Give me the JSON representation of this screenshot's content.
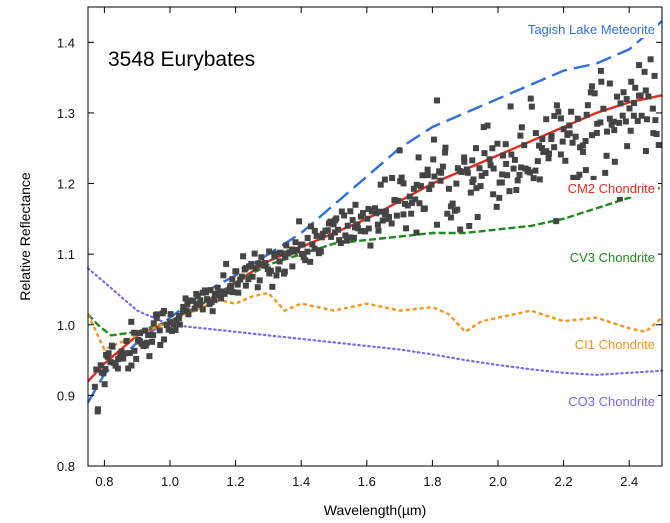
{
  "chart_data": {
    "type": "scatter",
    "title": "3548 Eurybates",
    "xlabel": "Wavelength(µm)",
    "ylabel": "Relative Reflectance",
    "xlim": [
      0.75,
      2.5
    ],
    "ylim": [
      0.8,
      1.45
    ],
    "xticks": [
      0.8,
      1.0,
      1.2,
      1.4,
      1.6,
      1.8,
      2.0,
      2.2,
      2.4
    ],
    "yticks": [
      0.8,
      0.9,
      1.0,
      1.1,
      1.2,
      1.3,
      1.4
    ],
    "xtick_labels": [
      "0.8",
      "1.0",
      "1.2",
      "1.4",
      "1.6",
      "1.8",
      "2.0",
      "2.2",
      "2.4"
    ],
    "ytick_labels": [
      "0.8",
      "0.9",
      "1.0",
      "1.1",
      "1.2",
      "1.3",
      "1.4"
    ],
    "grid": false,
    "legend": "inline labels at right side of each curve",
    "observed": {
      "marker": "square",
      "color": "#444444",
      "trend_x": [
        0.75,
        0.85,
        0.95,
        1.05,
        1.2,
        1.4,
        1.6,
        1.8,
        2.0,
        2.2,
        2.4,
        2.5
      ],
      "trend_y": [
        0.92,
        0.96,
        0.99,
        1.02,
        1.06,
        1.11,
        1.15,
        1.2,
        1.23,
        1.27,
        1.3,
        1.32
      ],
      "scatter_sd": [
        0.015,
        0.018,
        0.015,
        0.012,
        0.013,
        0.015,
        0.018,
        0.03,
        0.035,
        0.035,
        0.035,
        0.035
      ]
    },
    "series": [
      {
        "name": "Tagish Lake Meteorite",
        "color": "#2f6fe0",
        "dash": "long",
        "x": [
          0.75,
          0.8,
          0.9,
          1.0,
          1.1,
          1.2,
          1.3,
          1.4,
          1.5,
          1.6,
          1.7,
          1.8,
          1.9,
          2.0,
          2.1,
          2.2,
          2.3,
          2.4,
          2.5
        ],
        "y": [
          0.89,
          0.93,
          0.975,
          1.01,
          1.045,
          1.07,
          1.1,
          1.13,
          1.17,
          1.21,
          1.25,
          1.28,
          1.3,
          1.32,
          1.34,
          1.36,
          1.37,
          1.39,
          1.43
        ]
      },
      {
        "name": "CM2 Chondrite",
        "color": "#e8291c",
        "dash": "solid",
        "x": [
          0.75,
          0.8,
          0.9,
          1.0,
          1.1,
          1.2,
          1.3,
          1.4,
          1.5,
          1.6,
          1.7,
          1.8,
          1.9,
          2.0,
          2.1,
          2.2,
          2.3,
          2.4,
          2.5
        ],
        "y": [
          0.92,
          0.945,
          0.985,
          1.005,
          1.03,
          1.06,
          1.09,
          1.11,
          1.13,
          1.15,
          1.175,
          1.2,
          1.22,
          1.24,
          1.26,
          1.28,
          1.3,
          1.315,
          1.325
        ]
      },
      {
        "name": "CV3 Chondrite",
        "color": "#1f8a1f",
        "dash": "medium",
        "x": [
          0.75,
          0.78,
          0.82,
          0.9,
          1.0,
          1.1,
          1.2,
          1.3,
          1.4,
          1.5,
          1.6,
          1.7,
          1.8,
          1.9,
          2.0,
          2.1,
          2.2,
          2.3,
          2.4,
          2.5
        ],
        "y": [
          1.015,
          1.0,
          0.985,
          0.99,
          1.005,
          1.03,
          1.06,
          1.085,
          1.1,
          1.115,
          1.12,
          1.125,
          1.13,
          1.13,
          1.135,
          1.14,
          1.15,
          1.165,
          1.18,
          1.195
        ]
      },
      {
        "name": "CI1 Chondrite",
        "color": "#f7931e",
        "dash": "short",
        "x": [
          0.75,
          0.8,
          0.85,
          0.9,
          0.95,
          1.0,
          1.1,
          1.15,
          1.2,
          1.25,
          1.3,
          1.35,
          1.4,
          1.45,
          1.5,
          1.6,
          1.7,
          1.8,
          1.85,
          1.9,
          1.95,
          2.0,
          2.1,
          2.2,
          2.3,
          2.4,
          2.45,
          2.5
        ],
        "y": [
          1.015,
          0.965,
          0.975,
          0.985,
          0.995,
          1.005,
          1.025,
          1.035,
          1.03,
          1.04,
          1.045,
          1.02,
          1.03,
          1.025,
          1.02,
          1.03,
          1.02,
          1.025,
          1.015,
          0.99,
          1.005,
          1.01,
          1.02,
          1.005,
          1.01,
          0.995,
          0.99,
          1.01
        ]
      },
      {
        "name": "CO3 Chondrite",
        "color": "#7b68ee",
        "dash": "dot",
        "x": [
          0.75,
          0.8,
          0.9,
          1.0,
          1.1,
          1.2,
          1.3,
          1.4,
          1.5,
          1.6,
          1.7,
          1.8,
          1.9,
          2.0,
          2.1,
          2.2,
          2.3,
          2.4,
          2.5
        ],
        "y": [
          1.08,
          1.06,
          1.02,
          1.0,
          0.995,
          0.99,
          0.985,
          0.98,
          0.975,
          0.97,
          0.965,
          0.958,
          0.95,
          0.943,
          0.937,
          0.932,
          0.929,
          0.932,
          0.935
        ]
      }
    ]
  }
}
